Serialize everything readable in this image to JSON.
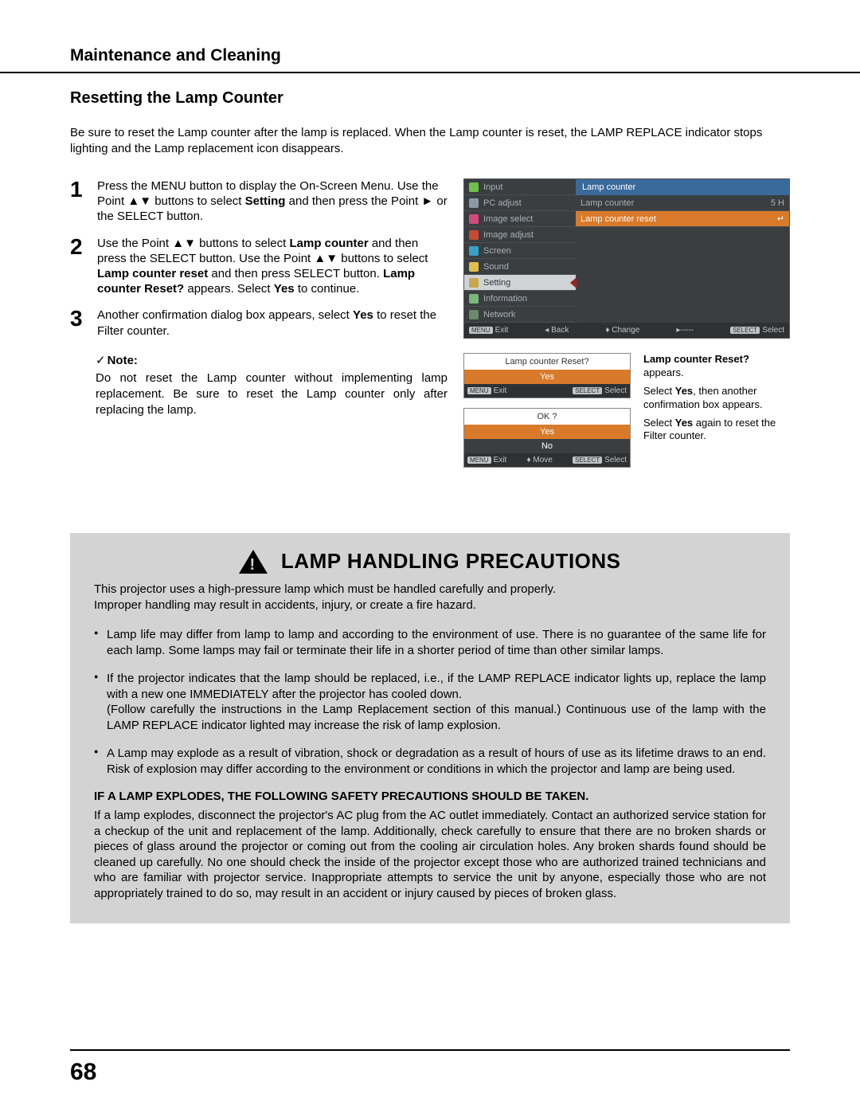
{
  "page_number": "68",
  "header": "Maintenance and Cleaning",
  "section_title": "Resetting the Lamp Counter",
  "intro": "Be sure to reset the Lamp counter after the lamp is replaced. When the Lamp counter is reset, the LAMP REPLACE indicator stops lighting and the Lamp replacement icon disappears.",
  "steps": [
    {
      "num": "1",
      "pre1": "Press the MENU button to display the On-Screen Menu. Use the Point ▲▼ buttons to select ",
      "b1": "Setting",
      "post1": " and then press the Point ► or the SELECT  button."
    },
    {
      "num": "2",
      "pre1": "Use the Point ▲▼ buttons to select ",
      "b1": "Lamp counter",
      "mid1": " and then press the SELECT button. Use the Point ▲▼ buttons to select ",
      "b2": "Lamp counter reset",
      "mid2": " and then press SELECT button. ",
      "b3": "Lamp counter Reset?",
      "post1": " appears. Select ",
      "b4": "Yes",
      "post2": " to continue."
    },
    {
      "num": "3",
      "pre1": "Another confirmation dialog box appears, select ",
      "b1": "Yes",
      "post1": " to reset the Filter counter."
    }
  ],
  "note": {
    "label": "Note:",
    "body": "Do not reset the Lamp counter without implementing lamp replacement. Be sure to reset the Lamp counter only after replacing the lamp."
  },
  "osd": {
    "left_items": [
      {
        "label": "Input",
        "color": "#6fbf4a"
      },
      {
        "label": "PC adjust",
        "color": "#8a9aa5"
      },
      {
        "label": "Image select",
        "color": "#d24a7a"
      },
      {
        "label": "Image adjust",
        "color": "#c84a30"
      },
      {
        "label": "Screen",
        "color": "#3aa0c8"
      },
      {
        "label": "Sound",
        "color": "#e0c04a"
      },
      {
        "label": "Setting",
        "color": "#c8a84a",
        "active": true
      },
      {
        "label": "Information",
        "color": "#7ab87a"
      },
      {
        "label": "Network",
        "color": "#6a8a6a"
      }
    ],
    "right_header": "Lamp counter",
    "right_items": [
      {
        "label": "Lamp counter",
        "value": "5 H"
      },
      {
        "label": "Lamp counter reset",
        "selected": true,
        "icon": "↵"
      }
    ],
    "footer": {
      "exit": "Exit",
      "back": "Back",
      "change": "Change",
      "select": "Select",
      "arrows": "▸-----"
    }
  },
  "dialog1": {
    "title": "Lamp counter Reset?",
    "yes": "Yes",
    "foot_exit": "Exit",
    "foot_sel": "Select"
  },
  "dialog2": {
    "title": "OK ?",
    "yes": "Yes",
    "no": "No",
    "foot_exit": "Exit",
    "foot_move": "Move",
    "foot_sel": "Select"
  },
  "side": {
    "l1a": "Lamp counter Reset?",
    "l1b": " appears.",
    "l2a": "Select ",
    "l2b": "Yes",
    "l2c": ", then another confirmation box appears.",
    "l3a": "Select ",
    "l3b": "Yes",
    "l3c": " again to reset the Filter counter."
  },
  "precautions": {
    "title": "LAMP HANDLING PRECAUTIONS",
    "intro": "This projector uses a high-pressure lamp which must be handled carefully and properly.\nImproper handling may result in accidents, injury, or create a fire hazard.",
    "bullets": [
      "Lamp life may differ from lamp to lamp and according to the environment of use. There is no guarantee of the same life for each lamp. Some lamps may fail or terminate their life in a shorter period of time than other similar lamps.",
      "If the projector indicates that the lamp should be replaced, i.e., if the LAMP REPLACE indicator lights up, replace the lamp with a new one IMMEDIATELY after the projector has cooled down.\n(Follow carefully the instructions in the Lamp Replacement section of this manual.) Continuous use of the lamp with the LAMP REPLACE indicator lighted may increase the risk of lamp explosion.",
      "A Lamp may explode as a result of vibration, shock or degradation as a result of hours of use as its lifetime draws to an end. Risk of explosion may differ according to the environment or conditions in which the projector and lamp are being used."
    ],
    "sub_heading": "IF A LAMP EXPLODES, THE FOLLOWING SAFETY PRECAUTIONS SHOULD BE TAKEN.",
    "para": "If a lamp explodes, disconnect the projector's AC plug from the AC outlet immediately. Contact an authorized service station for a checkup of the unit and replacement of the lamp. Additionally, check carefully to ensure that there are no broken shards or pieces of glass around the projector or coming out from the cooling air circulation holes. Any broken shards found should be cleaned up carefully. No one should check the inside of the projector except those who are authorized trained technicians and who are familiar with projector service. Inappropriate attempts to service the unit by anyone, especially those who are not appropriately trained to do so, may result in an accident or injury caused by pieces of broken glass."
  },
  "badges": {
    "menu": "MENU",
    "select": "SELECT"
  }
}
